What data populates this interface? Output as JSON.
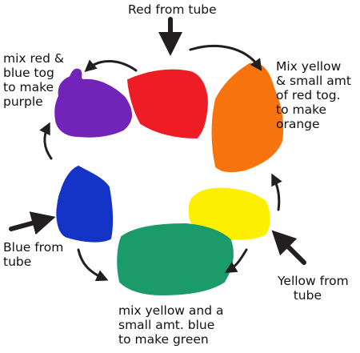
{
  "labels": {
    "red": "Red from tube",
    "purple": "mix red &\nblue tog\nto make\npurple",
    "orange": "Mix yellow\n& small amt\nof red tog.\nto make\norange",
    "blue": "Blue from\ntube",
    "yellow": "Yellow from\n    tube",
    "green": "mix yellow and a\nsmall amt. blue\nto make green"
  },
  "colors": {
    "red": "#ee1c24",
    "orange": "#f7730e",
    "yellow": "#fcf000",
    "green": "#1b9a6a",
    "blue": "#1334c6",
    "purple": "#7324b8",
    "arrow": "#231f20"
  }
}
